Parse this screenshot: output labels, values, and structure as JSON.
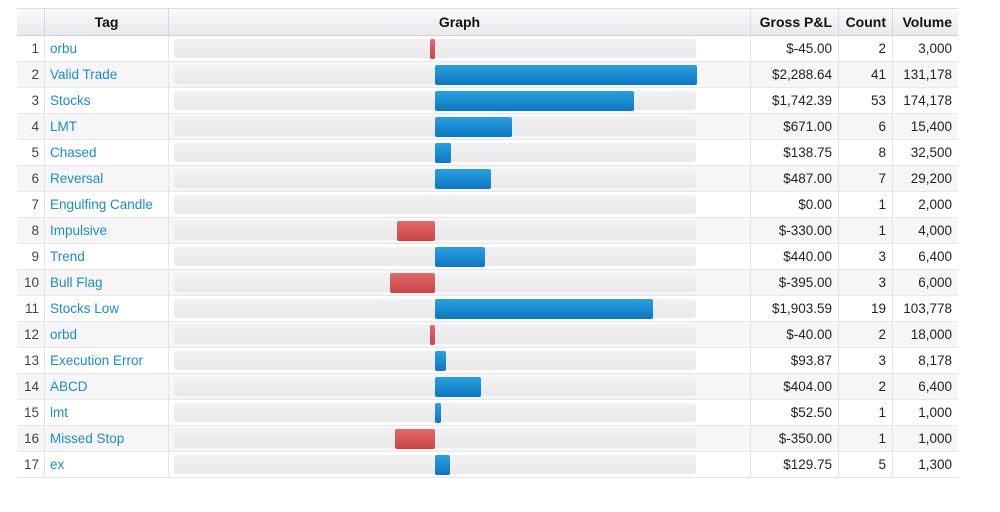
{
  "columns": {
    "tag": "Tag",
    "graph": "Graph",
    "pnl": "Gross P&L",
    "count": "Count",
    "volume": "Volume"
  },
  "colors": {
    "positive": "#0f81c9",
    "negative": "#d45151",
    "link": "#1a8ccc"
  },
  "rows": [
    {
      "num": "1",
      "tag": "orbu",
      "pnl": "$-45.00",
      "pnl_value": -45.0,
      "count": "2",
      "volume": "3,000"
    },
    {
      "num": "2",
      "tag": "Valid Trade",
      "pnl": "$2,288.64",
      "pnl_value": 2288.64,
      "count": "41",
      "volume": "131,178"
    },
    {
      "num": "3",
      "tag": "Stocks",
      "pnl": "$1,742.39",
      "pnl_value": 1742.39,
      "count": "53",
      "volume": "174,178"
    },
    {
      "num": "4",
      "tag": "LMT",
      "pnl": "$671.00",
      "pnl_value": 671.0,
      "count": "6",
      "volume": "15,400"
    },
    {
      "num": "5",
      "tag": "Chased",
      "pnl": "$138.75",
      "pnl_value": 138.75,
      "count": "8",
      "volume": "32,500"
    },
    {
      "num": "6",
      "tag": "Reversal",
      "pnl": "$487.00",
      "pnl_value": 487.0,
      "count": "7",
      "volume": "29,200"
    },
    {
      "num": "7",
      "tag": "Engulfing Candle",
      "pnl": "$0.00",
      "pnl_value": 0.0,
      "count": "1",
      "volume": "2,000"
    },
    {
      "num": "8",
      "tag": "Impulsive",
      "pnl": "$-330.00",
      "pnl_value": -330.0,
      "count": "1",
      "volume": "4,000"
    },
    {
      "num": "9",
      "tag": "Trend",
      "pnl": "$440.00",
      "pnl_value": 440.0,
      "count": "3",
      "volume": "6,400"
    },
    {
      "num": "10",
      "tag": "Bull Flag",
      "pnl": "$-395.00",
      "pnl_value": -395.0,
      "count": "3",
      "volume": "6,000"
    },
    {
      "num": "11",
      "tag": "Stocks Low",
      "pnl": "$1,903.59",
      "pnl_value": 1903.59,
      "count": "19",
      "volume": "103,778"
    },
    {
      "num": "12",
      "tag": "orbd",
      "pnl": "$-40.00",
      "pnl_value": -40.0,
      "count": "2",
      "volume": "18,000"
    },
    {
      "num": "13",
      "tag": "Execution Error",
      "pnl": "$93.87",
      "pnl_value": 93.87,
      "count": "3",
      "volume": "8,178"
    },
    {
      "num": "14",
      "tag": "ABCD",
      "pnl": "$404.00",
      "pnl_value": 404.0,
      "count": "2",
      "volume": "6,400"
    },
    {
      "num": "15",
      "tag": "lmt",
      "pnl": "$52.50",
      "pnl_value": 52.5,
      "count": "1",
      "volume": "1,000"
    },
    {
      "num": "16",
      "tag": "Missed Stop",
      "pnl": "$-350.00",
      "pnl_value": -350.0,
      "count": "1",
      "volume": "1,000"
    },
    {
      "num": "17",
      "tag": "ex",
      "pnl": "$129.75",
      "pnl_value": 129.75,
      "count": "5",
      "volume": "1,300"
    }
  ]
}
